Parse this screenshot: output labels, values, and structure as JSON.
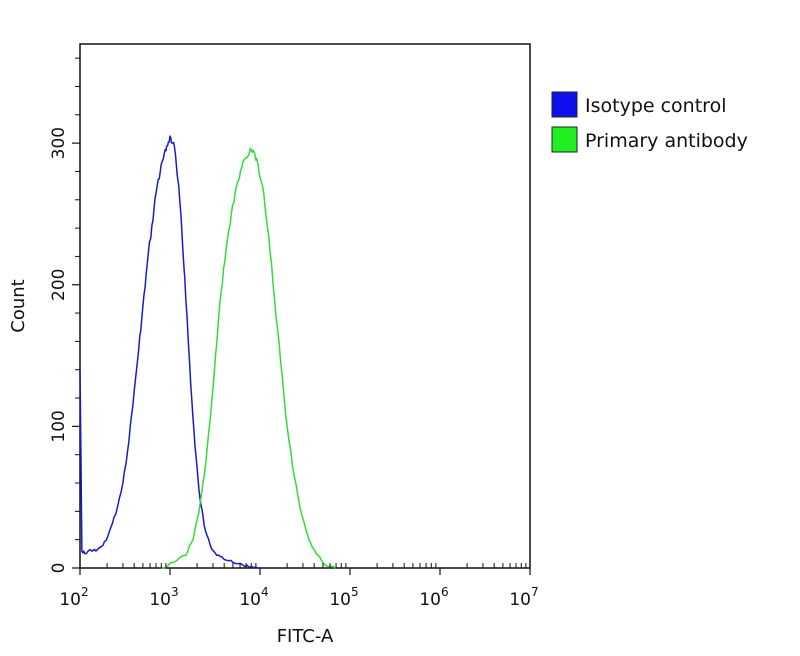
{
  "chart_data": {
    "type": "line",
    "title": "",
    "xlabel": "FITC-A",
    "ylabel": "Count",
    "x_scale": "log10",
    "xlim": [
      100,
      10000000
    ],
    "ylim": [
      0,
      370
    ],
    "x_ticks": [
      {
        "value": 100,
        "base": "10",
        "exp": "2"
      },
      {
        "value": 1000,
        "base": "10",
        "exp": "3"
      },
      {
        "value": 10000,
        "base": "10",
        "exp": "4"
      },
      {
        "value": 100000,
        "base": "10",
        "exp": "5"
      },
      {
        "value": 1000000,
        "base": "10",
        "exp": "6"
      },
      {
        "value": 10000000,
        "base": "10",
        "exp": "7"
      }
    ],
    "y_ticks": [
      {
        "value": 0,
        "label": "0"
      },
      {
        "value": 100,
        "label": "100"
      },
      {
        "value": 200,
        "label": "200"
      },
      {
        "value": 300,
        "label": "300"
      }
    ],
    "grid": false,
    "legend_position": "right",
    "series": [
      {
        "name": "Isotype control",
        "color": "#1a1acc",
        "legend_color": "#1010ee",
        "points": [
          [
            100,
            140
          ],
          [
            105,
            12
          ],
          [
            115,
            10
          ],
          [
            130,
            13
          ],
          [
            150,
            12
          ],
          [
            180,
            16
          ],
          [
            210,
            25
          ],
          [
            250,
            38
          ],
          [
            300,
            60
          ],
          [
            350,
            90
          ],
          [
            400,
            125
          ],
          [
            450,
            155
          ],
          [
            500,
            185
          ],
          [
            560,
            215
          ],
          [
            630,
            242
          ],
          [
            700,
            265
          ],
          [
            780,
            280
          ],
          [
            850,
            290
          ],
          [
            920,
            298
          ],
          [
            1000,
            305
          ],
          [
            1080,
            300
          ],
          [
            1150,
            292
          ],
          [
            1250,
            270
          ],
          [
            1350,
            240
          ],
          [
            1500,
            190
          ],
          [
            1700,
            130
          ],
          [
            1900,
            85
          ],
          [
            2100,
            55
          ],
          [
            2400,
            30
          ],
          [
            2800,
            16
          ],
          [
            3300,
            9
          ],
          [
            4000,
            6
          ],
          [
            5000,
            4
          ],
          [
            6500,
            2
          ],
          [
            8000,
            1
          ],
          [
            10000,
            0
          ]
        ]
      },
      {
        "name": "Primary antibody",
        "color": "#33dd33",
        "legend_color": "#22ee22",
        "points": [
          [
            800,
            0
          ],
          [
            1100,
            4
          ],
          [
            1500,
            9
          ],
          [
            1800,
            20
          ],
          [
            2100,
            40
          ],
          [
            2400,
            65
          ],
          [
            2800,
            105
          ],
          [
            3200,
            150
          ],
          [
            3700,
            195
          ],
          [
            4200,
            225
          ],
          [
            4800,
            250
          ],
          [
            5500,
            270
          ],
          [
            6300,
            283
          ],
          [
            7200,
            290
          ],
          [
            8000,
            295
          ],
          [
            8800,
            292
          ],
          [
            9500,
            285
          ],
          [
            11000,
            265
          ],
          [
            12500,
            235
          ],
          [
            14500,
            190
          ],
          [
            17000,
            145
          ],
          [
            20000,
            100
          ],
          [
            24000,
            65
          ],
          [
            29000,
            38
          ],
          [
            35000,
            20
          ],
          [
            42000,
            10
          ],
          [
            50000,
            4
          ],
          [
            60000,
            1
          ],
          [
            70000,
            0
          ]
        ]
      }
    ]
  }
}
